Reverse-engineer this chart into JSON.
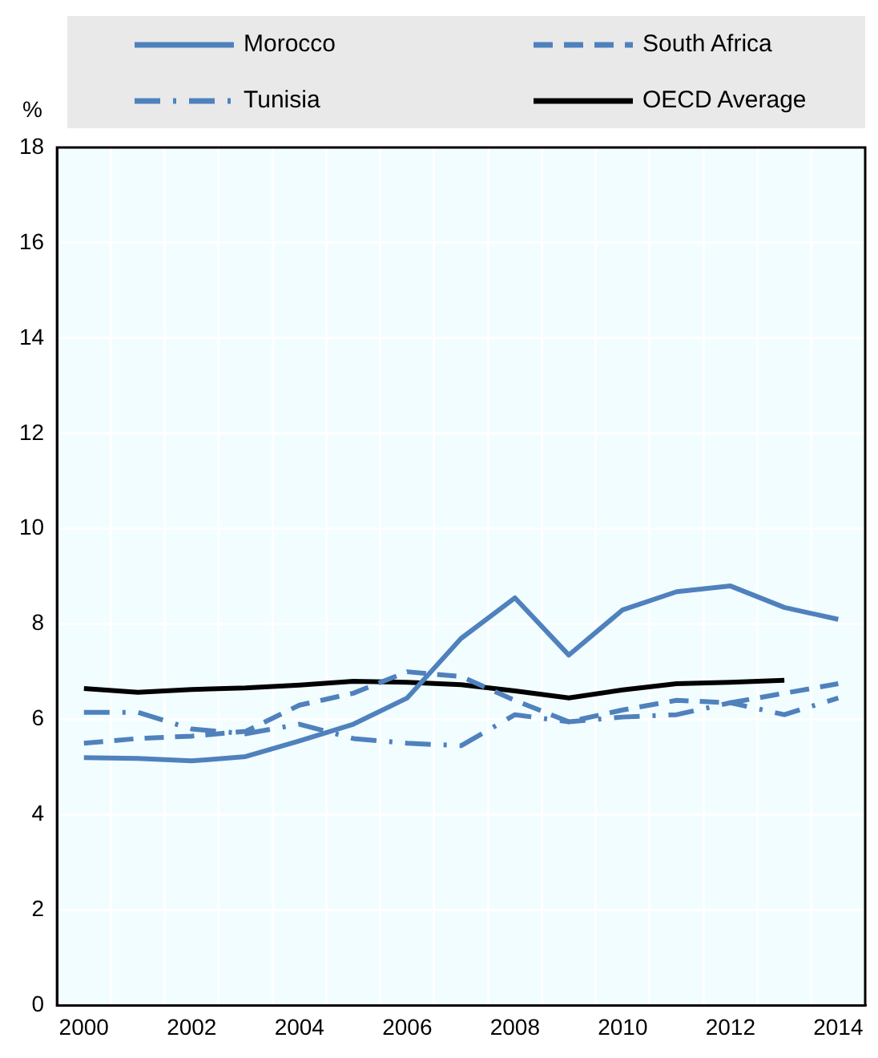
{
  "chart_data": {
    "type": "line",
    "ylabel": "%",
    "categories": [
      "2000",
      null,
      "2002",
      null,
      "2004",
      null,
      "2006",
      null,
      "2008",
      null,
      "2010",
      null,
      "2012",
      null,
      "2014"
    ],
    "series": [
      {
        "name": "Morocco",
        "color": "#4f81bd",
        "line_style": "solid",
        "values": [
          5.2,
          5.18,
          5.13,
          5.22,
          5.55,
          5.9,
          6.45,
          7.7,
          8.55,
          7.35,
          8.3,
          8.68,
          8.8,
          8.35,
          8.1
        ]
      },
      {
        "name": "South Africa",
        "color": "#4f81bd",
        "line_style": "dashed",
        "values": [
          5.5,
          5.6,
          5.65,
          5.75,
          6.3,
          6.55,
          7.0,
          6.9,
          6.4,
          5.95,
          6.2,
          6.4,
          6.35,
          6.55,
          6.75
        ]
      },
      {
        "name": "Tunisia",
        "color": "#4f81bd",
        "line_style": "dashdot",
        "values": [
          6.15,
          6.15,
          5.8,
          5.7,
          5.9,
          5.6,
          5.5,
          5.45,
          6.1,
          5.95,
          6.05,
          6.1,
          6.35,
          6.1,
          6.45
        ]
      },
      {
        "name": "OECD Average",
        "color": "#000000",
        "line_style": "solid",
        "values": [
          6.65,
          6.57,
          6.63,
          6.66,
          6.72,
          6.8,
          6.78,
          6.73,
          6.6,
          6.45,
          6.62,
          6.75,
          6.78,
          6.82,
          null
        ]
      }
    ],
    "ylim": [
      0,
      18
    ],
    "yticks": [
      0,
      2,
      4,
      6,
      8,
      10,
      12,
      14,
      16,
      18
    ],
    "grid": true,
    "legend": "top",
    "marker": "none"
  }
}
